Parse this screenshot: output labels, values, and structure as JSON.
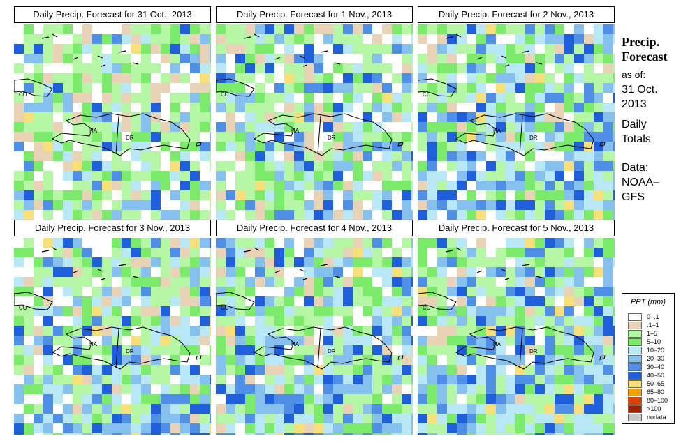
{
  "panels": [
    {
      "title": "Daily Precip. Forecast for  31 Oct., 2013",
      "seed": 11,
      "wet": 0.25
    },
    {
      "title": "Daily Precip. Forecast for  1 Nov., 2013",
      "seed": 23,
      "wet": 0.35
    },
    {
      "title": "Daily Precip. Forecast for  2 Nov., 2013",
      "seed": 37,
      "wet": 0.6
    },
    {
      "title": "Daily Precip. Forecast for  3 Nov., 2013",
      "seed": 41,
      "wet": 0.5
    },
    {
      "title": "Daily Precip. Forecast for  4 Nov., 2013",
      "seed": 53,
      "wet": 0.55
    },
    {
      "title": "Daily Precip. Forecast for  5 Nov., 2013",
      "seed": 67,
      "wet": 0.65
    }
  ],
  "map_labels": {
    "cu": "CU",
    "ha": "HA",
    "dr": "DR"
  },
  "side": {
    "heading_line1": "Precip.",
    "heading_line2": "Forecast",
    "asof": "as of:",
    "date_line1": "31 Oct.",
    "date_line2": "2013",
    "totals_line1": "Daily",
    "totals_line2": "Totals",
    "data_line1": "Data:",
    "data_line2": "NOAA–",
    "data_line3": "GFS"
  },
  "legend": {
    "title": "PPT (mm)",
    "entries": [
      {
        "label": "0–.1",
        "color": "#ffffff"
      },
      {
        "label": ".1–1",
        "color": "#e8d3b6"
      },
      {
        "label": "1–5",
        "color": "#b5f7a4"
      },
      {
        "label": "5–10",
        "color": "#7cea6a"
      },
      {
        "label": "10–20",
        "color": "#b8e8f5"
      },
      {
        "label": "20–30",
        "color": "#86c0ee"
      },
      {
        "label": "30–40",
        "color": "#4f8fe6"
      },
      {
        "label": "40–50",
        "color": "#1f5fdc"
      },
      {
        "label": "50–65",
        "color": "#f7e07a"
      },
      {
        "label": "65–80",
        "color": "#f5a000"
      },
      {
        "label": "80–100",
        "color": "#e04000"
      },
      {
        "label": ">100",
        "color": "#a02000"
      },
      {
        "label": "nodata",
        "color": "#c8c8c8"
      }
    ]
  }
}
